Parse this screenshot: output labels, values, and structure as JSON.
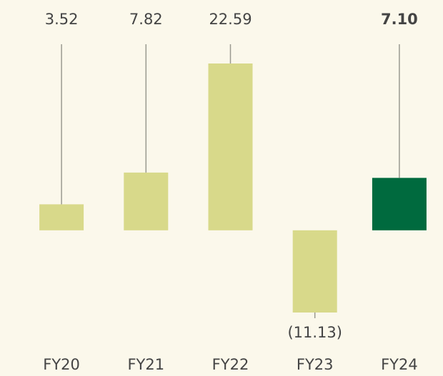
{
  "chart_data": {
    "type": "bar",
    "categories": [
      "FY20",
      "FY21",
      "FY22",
      "FY23",
      "FY24"
    ],
    "values": [
      3.52,
      7.82,
      22.59,
      -11.13,
      7.1
    ],
    "value_labels": [
      "3.52",
      "7.82",
      "22.59",
      "(11.13)",
      "7.10"
    ],
    "colors": [
      "#d8d98a",
      "#d8d98a",
      "#d8d98a",
      "#d8d98a",
      "#006a3e"
    ]
  }
}
